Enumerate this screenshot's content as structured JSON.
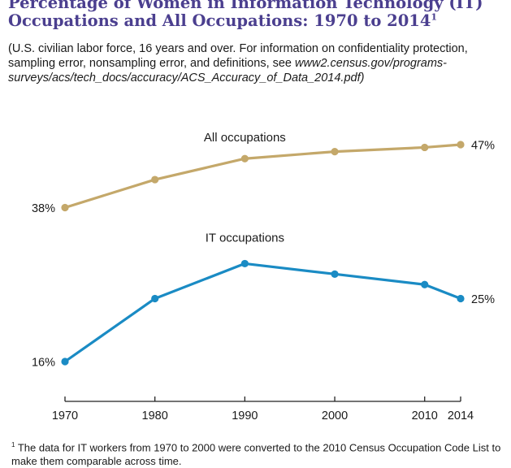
{
  "title": {
    "line1": "Percentage of Women in Information Technology (IT)",
    "line2": "Occupations and All Occupations: 1970 to 2014",
    "footnote_marker": "1"
  },
  "note": {
    "text": "(U.S. civilian labor force, 16 years and over. For information on confidentiality protection, sampling error, nonsampling error, and definitions, see ",
    "link": "www2.census.gov/programs-surveys/acs/tech_docs/accuracy/ACS_Accuracy_of_Data_2014.pdf)"
  },
  "footnote": {
    "marker": "1",
    "text": " The data for IT workers from 1970 to 2000 were converted to the 2010 Census Occupation Code List to make them comparable across time."
  },
  "chart_data": {
    "type": "line",
    "x": [
      1970,
      1980,
      1990,
      2000,
      2010,
      2014
    ],
    "x_tick_labels": [
      "1970",
      "1980",
      "1990",
      "2000",
      "2010",
      "2014"
    ],
    "y_range": [
      16,
      47
    ],
    "series": [
      {
        "name": "All occupations",
        "color": "#c4a86a",
        "values": [
          38,
          42,
          45,
          46,
          46.6,
          47
        ],
        "start_label": "38%",
        "end_label": "47%"
      },
      {
        "name": "IT occupations",
        "color": "#1a8bc4",
        "values": [
          16,
          25,
          30,
          28.5,
          27,
          25
        ],
        "start_label": "16%",
        "end_label": "25%"
      }
    ],
    "grid": false,
    "legend": "inline labels above each line"
  }
}
